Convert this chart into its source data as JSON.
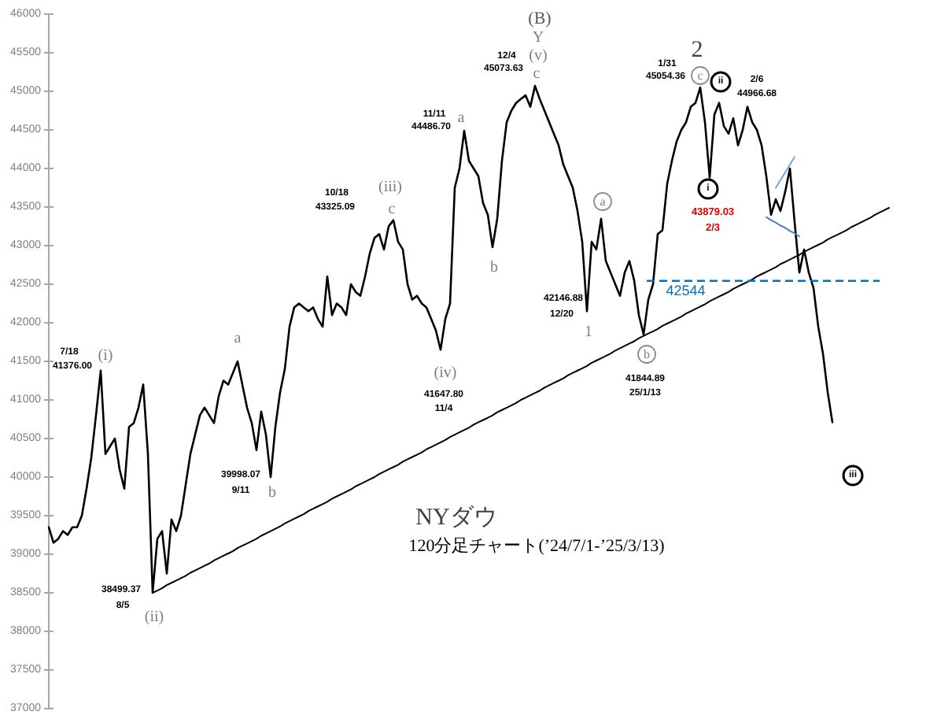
{
  "chart_data": {
    "type": "line",
    "title": "NYダウ",
    "subtitle": "120分足チャート(’24/7/1-’25/3/13)",
    "categories": [
      null,
      null,
      null,
      null,
      null,
      null,
      null,
      null,
      null,
      null,
      null,
      null,
      null,
      null,
      null,
      null,
      null,
      null,
      null,
      null,
      null,
      null,
      null,
      null,
      null,
      null,
      null,
      null,
      null,
      null,
      null,
      null,
      null,
      null,
      null,
      null,
      null,
      null,
      null,
      null,
      null,
      null,
      null,
      null,
      null,
      null,
      null,
      null,
      null,
      null,
      null,
      null,
      null,
      null,
      null,
      null,
      null,
      null,
      null,
      null,
      null,
      null,
      null,
      null,
      null,
      null,
      null,
      null,
      null,
      null,
      null,
      null,
      null,
      null,
      null,
      null,
      null,
      null,
      null,
      null,
      null,
      null,
      null,
      null,
      null,
      null,
      null,
      null,
      null,
      null,
      null,
      null,
      null,
      null,
      null,
      null,
      null,
      null,
      null,
      null,
      null,
      null,
      null,
      null,
      null,
      null,
      null,
      null,
      null,
      null,
      null,
      null,
      null,
      null,
      null,
      null,
      null,
      null,
      null,
      null,
      null,
      null,
      null,
      null,
      null,
      null,
      null,
      null,
      null,
      null,
      null,
      null,
      null,
      null,
      null,
      null,
      null,
      null,
      null,
      null,
      null,
      null,
      null,
      null,
      null,
      null,
      null,
      null,
      null,
      null,
      null,
      null,
      null,
      null,
      null,
      null,
      null,
      null,
      null,
      null,
      null,
      null,
      null,
      null,
      null,
      null,
      null,
      null,
      null,
      null,
      null,
      null,
      null,
      null,
      null,
      null,
      null,
      null,
      null
    ],
    "ylim": [
      37000,
      46000
    ],
    "yticks": [
      37000,
      37500,
      38000,
      38500,
      39000,
      39500,
      40000,
      40500,
      41000,
      41500,
      42000,
      42500,
      43000,
      43500,
      44000,
      44500,
      45000,
      45500,
      46000
    ],
    "tick_labels": "y",
    "series": [
      {
        "color": "#000000",
        "values": [
          39350,
          39150,
          39200,
          39300,
          39250,
          39350,
          39350,
          39500,
          39850,
          40250,
          40800,
          41380,
          40300,
          40400,
          40500,
          40100,
          39850,
          40650,
          40700,
          40900,
          41200,
          40300,
          38500,
          39200,
          39300,
          38750,
          39450,
          39300,
          39500,
          39900,
          40300,
          40550,
          40800,
          40900,
          40800,
          40700,
          41050,
          41250,
          41200,
          41350,
          41500,
          41200,
          40900,
          40700,
          40350,
          40850,
          40550,
          40000,
          40650,
          41100,
          41400,
          41950,
          42200,
          42250,
          42200,
          42150,
          42200,
          42050,
          41950,
          42600,
          42100,
          42250,
          42200,
          42100,
          42500,
          42400,
          42350,
          42600,
          42900,
          43100,
          43150,
          42950,
          43250,
          43330,
          43050,
          42950,
          42500,
          42300,
          42350,
          42250,
          42200,
          42050,
          41900,
          41650,
          42050,
          42250,
          43750,
          44000,
          44490,
          44100,
          44000,
          43900,
          43550,
          43400,
          42980,
          43350,
          44100,
          44600,
          44750,
          44850,
          44900,
          44950,
          44800,
          45070,
          44900,
          44750,
          44600,
          44450,
          44300,
          44050,
          43900,
          43750,
          43450,
          43050,
          42150,
          43050,
          42950,
          43350,
          42800,
          42650,
          42500,
          42350,
          42650,
          42800,
          42550,
          42100,
          41850,
          42300,
          42500,
          43150,
          43200,
          43800,
          44100,
          44350,
          44500,
          44600,
          44800,
          44850,
          45050,
          44600,
          43880,
          44700,
          44850,
          44550,
          44450,
          44650,
          44300,
          44500,
          44800,
          44600,
          44500,
          44300,
          43900,
          43400,
          43600,
          43450,
          43700,
          44000,
          43300,
          42650,
          42950,
          42650,
          42450,
          41950,
          41600,
          41100,
          40710,
          null,
          null,
          null,
          null,
          null,
          null,
          null,
          null,
          null,
          null,
          null,
          null
        ]
      },
      {
        "type": "line",
        "color": "#000000",
        "values": [
          null,
          null,
          null,
          null,
          null,
          null,
          null,
          null,
          null,
          null,
          null,
          null,
          null,
          null,
          null,
          null,
          null,
          null,
          null,
          null,
          null,
          null,
          38500,
          38530,
          38560,
          38600,
          38630,
          38660,
          38690,
          38720,
          38760,
          38790,
          38820,
          38850,
          38880,
          38920,
          38950,
          38980,
          39010,
          39040,
          39080,
          39110,
          39140,
          39170,
          39200,
          39240,
          39270,
          39300,
          39330,
          39360,
          39400,
          39430,
          39460,
          39490,
          39520,
          39560,
          39590,
          39620,
          39650,
          39680,
          39720,
          39750,
          39780,
          39810,
          39840,
          39880,
          39910,
          39940,
          39970,
          40000,
          40040,
          40070,
          40100,
          40130,
          40160,
          40200,
          40230,
          40260,
          40290,
          40320,
          40360,
          40390,
          40420,
          40450,
          40480,
          40520,
          40550,
          40580,
          40610,
          40640,
          40680,
          40710,
          40740,
          40770,
          40800,
          40840,
          40870,
          40900,
          40930,
          40960,
          41000,
          41030,
          41060,
          41090,
          41120,
          41160,
          41190,
          41220,
          41250,
          41280,
          41320,
          41350,
          41380,
          41410,
          41440,
          41480,
          41510,
          41540,
          41570,
          41600,
          41640,
          41670,
          41700,
          41730,
          41760,
          41800,
          41830,
          41860,
          41890,
          41920,
          41960,
          41990,
          42020,
          42050,
          42080,
          42120,
          42150,
          42180,
          42210,
          42240,
          42280,
          42310,
          42340,
          42370,
          42400,
          42440,
          42470,
          42500,
          42530,
          42560,
          42600,
          42630,
          42660,
          42690,
          42720,
          42760,
          42790,
          42820,
          42850,
          42880,
          42920,
          42950,
          42980,
          43010,
          43040,
          43080,
          43110,
          43140,
          43170,
          43200,
          43240,
          43270,
          43300,
          43330,
          43360,
          43400,
          43430,
          43460,
          43490
        ]
      },
      {
        "type": "line",
        "color": "#6fa8dc",
        "values": [
          null,
          null,
          null,
          null,
          null,
          null,
          null,
          null,
          null,
          null,
          null,
          null,
          null,
          null,
          null,
          null,
          null,
          null,
          null,
          null,
          null,
          null,
          null,
          null,
          null,
          null,
          null,
          null,
          null,
          null,
          null,
          null,
          null,
          null,
          null,
          null,
          null,
          null,
          null,
          null,
          null,
          null,
          null,
          null,
          null,
          null,
          null,
          null,
          null,
          null,
          null,
          null,
          null,
          null,
          null,
          null,
          null,
          null,
          null,
          null,
          null,
          null,
          null,
          null,
          null,
          null,
          null,
          null,
          null,
          null,
          null,
          null,
          null,
          null,
          null,
          null,
          null,
          null,
          null,
          null,
          null,
          null,
          null,
          null,
          null,
          null,
          null,
          null,
          null,
          null,
          null,
          null,
          null,
          null,
          null,
          null,
          null,
          null,
          null,
          null,
          null,
          null,
          null,
          null,
          null,
          null,
          null,
          null,
          null,
          null,
          null,
          null,
          null,
          null,
          null,
          null,
          null,
          null,
          null,
          null,
          null,
          null,
          null,
          null,
          null,
          null,
          null,
          null,
          null,
          null,
          null,
          null,
          null,
          null,
          null,
          null,
          null,
          null,
          null,
          null,
          null,
          null,
          null,
          null,
          null,
          null,
          null,
          null,
          null,
          null,
          null,
          null,
          null,
          null,
          43750,
          43850,
          43950,
          44050,
          44150,
          null,
          null,
          null,
          null,
          null,
          null,
          null,
          null,
          null,
          null,
          null,
          null,
          null,
          null,
          null,
          null,
          null,
          null,
          null,
          null
        ]
      },
      {
        "type": "line",
        "color": "#4a7fc1",
        "values": [
          null,
          null,
          null,
          null,
          null,
          null,
          null,
          null,
          null,
          null,
          null,
          null,
          null,
          null,
          null,
          null,
          null,
          null,
          null,
          null,
          null,
          null,
          null,
          null,
          null,
          null,
          null,
          null,
          null,
          null,
          null,
          null,
          null,
          null,
          null,
          null,
          null,
          null,
          null,
          null,
          null,
          null,
          null,
          null,
          null,
          null,
          null,
          null,
          null,
          null,
          null,
          null,
          null,
          null,
          null,
          null,
          null,
          null,
          null,
          null,
          null,
          null,
          null,
          null,
          null,
          null,
          null,
          null,
          null,
          null,
          null,
          null,
          null,
          null,
          null,
          null,
          null,
          null,
          null,
          null,
          null,
          null,
          null,
          null,
          null,
          null,
          null,
          null,
          null,
          null,
          null,
          null,
          null,
          null,
          null,
          null,
          null,
          null,
          null,
          null,
          null,
          null,
          null,
          null,
          null,
          null,
          null,
          null,
          null,
          null,
          null,
          null,
          null,
          null,
          null,
          null,
          null,
          null,
          null,
          null,
          null,
          null,
          null,
          null,
          null,
          null,
          null,
          null,
          null,
          null,
          null,
          null,
          null,
          null,
          null,
          null,
          null,
          null,
          null,
          null,
          null,
          null,
          null,
          null,
          null,
          null,
          null,
          null,
          null,
          null,
          null,
          null,
          43370,
          43330,
          43300,
          43260,
          43230,
          43190,
          43160,
          43120,
          null,
          null,
          null,
          null,
          null,
          null,
          null,
          null,
          null,
          null,
          null,
          null,
          null,
          null,
          null,
          null,
          null,
          null,
          null
        ]
      }
    ],
    "ref_lines": [
      {
        "axis": "y",
        "value": 42544,
        "label": "42544",
        "color": "#0070c0",
        "line_style": "dashed"
      }
    ],
    "annotations": [
      "(i)",
      "7/18",
      "41376.00",
      "(ii)",
      "38499.37",
      "8/5",
      "a",
      "b",
      "39998.07",
      "9/11",
      "(iii)",
      "c",
      "10/18",
      "43325.09",
      "(iv)",
      "41647.80",
      "11/4",
      "a",
      "11/11",
      "44486.70",
      "b",
      "(B)",
      "Y",
      "(v)",
      "c",
      "12/4",
      "45073.63",
      "1",
      "42146.88",
      "12/20",
      "a",
      "b",
      "41844.89",
      "25/1/13",
      "2",
      "c",
      "1/31",
      "45054.36",
      "i",
      "43879.03",
      "2/3",
      "ii",
      "2/6",
      "44966.68",
      "iii"
    ]
  }
}
